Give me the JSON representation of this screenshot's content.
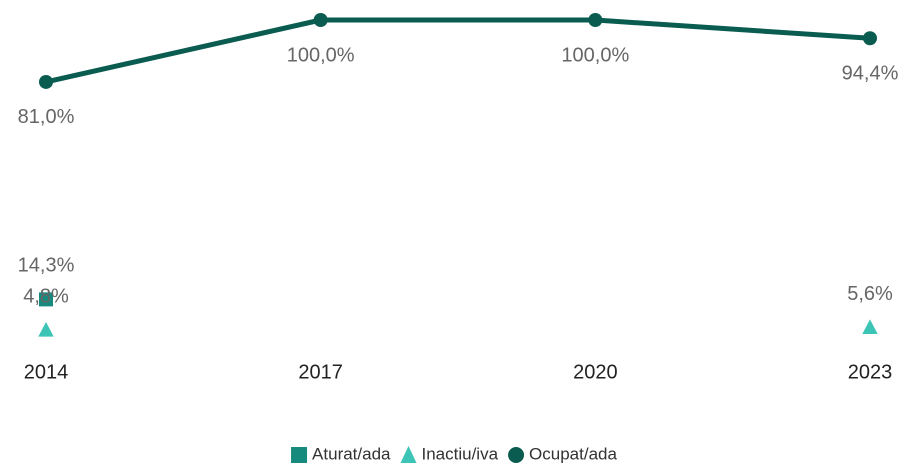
{
  "chart_data": {
    "type": "line",
    "categories": [
      "2014",
      "2017",
      "2020",
      "2023"
    ],
    "ylim": [
      0,
      100
    ],
    "series": [
      {
        "name": "Aturat/ada",
        "color": "#168a7c",
        "marker": "square",
        "line": false,
        "values": [
          14.3,
          null,
          null,
          null
        ],
        "value_labels": [
          "14,3%",
          null,
          null,
          null
        ]
      },
      {
        "name": "Inactiu/iva",
        "color": "#3cc4b6",
        "marker": "triangle",
        "line": false,
        "values": [
          4.8,
          null,
          null,
          5.6
        ],
        "value_labels": [
          "4,8%",
          null,
          null,
          "5,6%"
        ]
      },
      {
        "name": "Ocupat/ada",
        "color": "#0b5c50",
        "marker": "circle",
        "line": true,
        "values": [
          81.0,
          100.0,
          100.0,
          94.4
        ],
        "value_labels": [
          "81,0%",
          "100,0%",
          "100,0%",
          "94,4%"
        ]
      }
    ]
  }
}
